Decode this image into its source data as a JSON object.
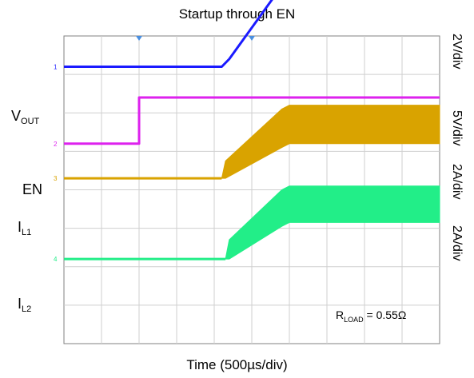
{
  "chart_data": {
    "type": "line",
    "title": "Startup through EN",
    "xlabel": "Time (500µs/div)",
    "grid": true,
    "x_divisions": 10,
    "y_divisions": 8,
    "annotation": {
      "main": "R",
      "sub": "LOAD",
      "rest": " = 0.55Ω"
    },
    "scales": [
      "2V/div",
      "5V/div",
      "2A/div",
      "2A/div"
    ],
    "series": [
      {
        "name": "VOUT",
        "label_main": "V",
        "label_sub": "OUT",
        "color": "#1a1aff",
        "marker": "1",
        "style": "line",
        "x": [
          0,
          4.2,
          4.4,
          5.8,
          6.2,
          10
        ],
        "y": [
          7.2,
          7.2,
          7.4,
          9.3,
          9.5,
          9.5
        ]
      },
      {
        "name": "EN",
        "label_main": "EN",
        "label_sub": "",
        "color": "#dd22ee",
        "marker": "2",
        "style": "line",
        "x": [
          0,
          2.0,
          2.0,
          10
        ],
        "y": [
          5.2,
          5.2,
          6.4,
          6.4
        ]
      },
      {
        "name": "IL1",
        "label_main": "I",
        "label_sub": "L1",
        "color": "#d9a300",
        "marker": "3",
        "style": "band",
        "x": [
          0,
          4.2,
          4.3,
          5.8,
          6.0,
          10
        ],
        "upper": [
          4.3,
          4.3,
          4.75,
          6.1,
          6.2,
          6.2
        ],
        "lower": [
          4.3,
          4.3,
          4.3,
          5.1,
          5.2,
          5.2
        ]
      },
      {
        "name": "IL2",
        "label_main": "I",
        "label_sub": "L2",
        "color": "#22ee88",
        "marker": "4",
        "style": "band",
        "x": [
          0,
          4.3,
          4.4,
          5.8,
          6.0,
          10
        ],
        "upper": [
          2.2,
          2.2,
          2.7,
          4.0,
          4.1,
          4.1
        ],
        "lower": [
          2.2,
          2.2,
          2.2,
          3.05,
          3.15,
          3.15
        ]
      }
    ]
  }
}
